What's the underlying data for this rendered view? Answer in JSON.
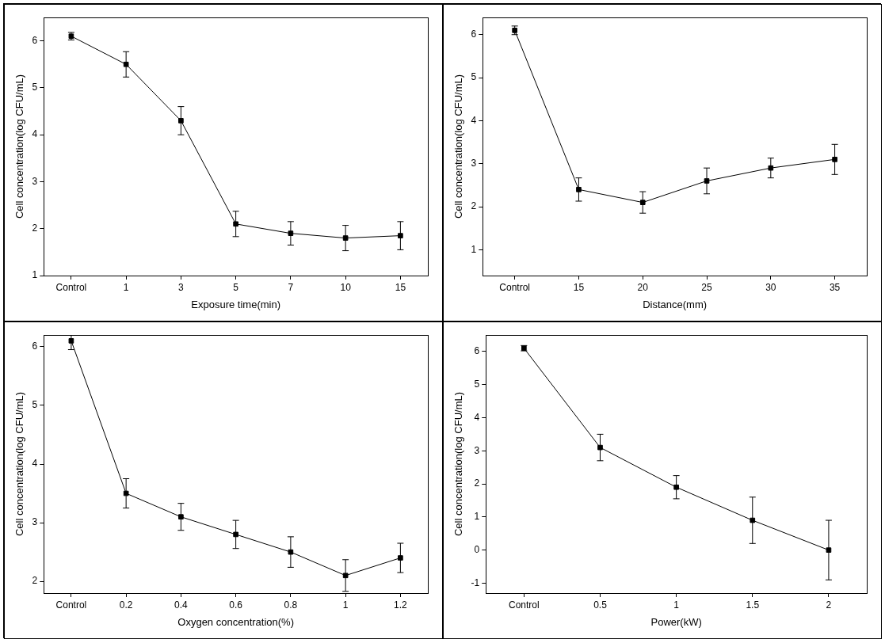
{
  "chart_data": [
    {
      "type": "line",
      "x_label": "Exposure time(min)",
      "y_label": "Cell concentration(log CFU/mL)",
      "categories": [
        "Control",
        "1",
        "3",
        "5",
        "7",
        "10",
        "15"
      ],
      "series": [
        {
          "name": "Cell concentration",
          "color": "#000000",
          "marker": "square",
          "values": [
            6.1,
            5.5,
            4.3,
            2.1,
            1.9,
            1.8,
            1.85
          ],
          "errors": [
            0.08,
            0.27,
            0.3,
            0.27,
            0.25,
            0.27,
            0.3
          ]
        }
      ],
      "ylim": [
        1,
        6.5
      ],
      "yticks": [
        1,
        2,
        3,
        4,
        5,
        6
      ],
      "grid": false
    },
    {
      "type": "line",
      "x_label": "Distance(mm)",
      "y_label": "Cell concentration(log CFU/mL)",
      "categories": [
        "Control",
        "15",
        "20",
        "25",
        "30",
        "35"
      ],
      "series": [
        {
          "name": "Cell concentration",
          "color": "#000000",
          "marker": "square",
          "values": [
            6.1,
            2.4,
            2.1,
            2.6,
            2.9,
            3.1
          ],
          "errors": [
            0.1,
            0.27,
            0.25,
            0.3,
            0.23,
            0.35
          ]
        }
      ],
      "ylim": [
        0.4,
        6.4
      ],
      "yticks": [
        1,
        2,
        3,
        4,
        5,
        6
      ],
      "grid": false
    },
    {
      "type": "line",
      "x_label": "Oxygen concentration(%)",
      "y_label": "Cell concentration(log CFU/mL)",
      "categories": [
        "Control",
        "0.2",
        "0.4",
        "0.6",
        "0.8",
        "1",
        "1.2"
      ],
      "series": [
        {
          "name": "Cell concentration",
          "color": "#000000",
          "marker": "square",
          "values": [
            6.1,
            3.5,
            3.1,
            2.8,
            2.5,
            2.1,
            2.4
          ],
          "errors": [
            0.15,
            0.25,
            0.23,
            0.24,
            0.26,
            0.27,
            0.25
          ]
        }
      ],
      "ylim": [
        1.8,
        6.2
      ],
      "yticks": [
        2,
        3,
        4,
        5,
        6
      ],
      "grid": false
    },
    {
      "type": "line",
      "x_label": "Power(kW)",
      "y_label": "Cell concentration(log CFU/mL)",
      "categories": [
        "Control",
        "0.5",
        "1",
        "1.5",
        "2"
      ],
      "series": [
        {
          "name": "Cell concentration",
          "color": "#000000",
          "marker": "square",
          "values": [
            6.1,
            3.1,
            1.9,
            0.9,
            0.0
          ],
          "errors": [
            0.08,
            0.4,
            0.35,
            0.7,
            0.9
          ]
        }
      ],
      "ylim": [
        -1.3,
        6.5
      ],
      "yticks": [
        -1,
        0,
        1,
        2,
        3,
        4,
        5,
        6
      ],
      "grid": false
    }
  ]
}
